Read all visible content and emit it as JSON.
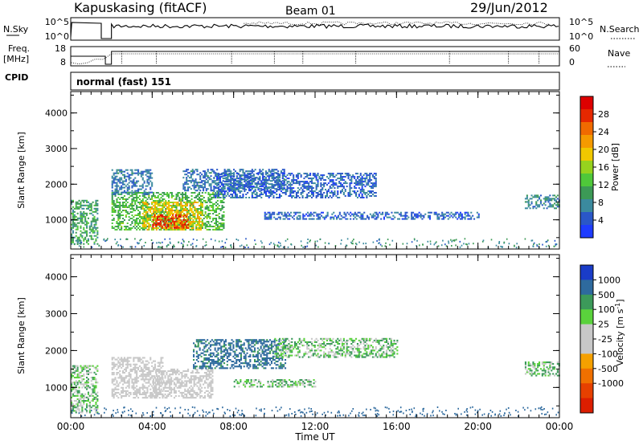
{
  "header": {
    "station": "Kapuskasing (fitACF)",
    "beam": "Beam 01",
    "date": "29/Jun/2012"
  },
  "top_panels": {
    "nsky_label": "N.Sky",
    "nsky_ticks": [
      "10^5",
      "10^0"
    ],
    "nsearch_label": "N.Search",
    "nsearch_ticks": [
      "10^5",
      "10^0"
    ],
    "freq_label_1": "Freq.",
    "freq_label_2": "[MHz]",
    "freq_ticks": [
      "18",
      "8"
    ],
    "nave_label": "Nave",
    "nave_ticks": [
      "60",
      "0"
    ],
    "cpid_label": "CPID",
    "cpid_value": "normal (fast) 151"
  },
  "colors": {
    "power_scale": [
      "#1e3cff",
      "#2a57c8",
      "#3b8a9e",
      "#3c9a56",
      "#4fc83a",
      "#96d21e",
      "#f0c800",
      "#f59a00",
      "#f06a00",
      "#e62800",
      "#dd0000"
    ],
    "velocity_scale": [
      "#1a3cc8",
      "#2e6a9e",
      "#3c9a5a",
      "#5ad23c",
      "#c8c8c8",
      "#c8c8c8",
      "#f5a000",
      "#f07000",
      "#e64000",
      "#dc1e00"
    ]
  },
  "chart_data": [
    {
      "type": "heatmap",
      "panel": "power",
      "ylabel": "Slant Range [km]",
      "ylim": [
        180,
        4600
      ],
      "yticks": [
        "4000",
        "3000",
        "2000",
        "1000"
      ],
      "xlim_hours": [
        0,
        24
      ],
      "colorbar_label": "Power [dB]",
      "colorbar_ticks": [
        "28",
        "24",
        "20",
        "16",
        "12",
        "8",
        "4"
      ],
      "colorbar_range": [
        0,
        32
      ],
      "echo_regions": [
        {
          "t": [
            0.0,
            1.3
          ],
          "r": [
            300,
            1550
          ],
          "level": 10
        },
        {
          "t": [
            2.0,
            7.5
          ],
          "r": [
            700,
            1750
          ],
          "level": 12
        },
        {
          "t": [
            3.5,
            6.5
          ],
          "r": [
            700,
            1500
          ],
          "level": 19
        },
        {
          "t": [
            4.0,
            5.8
          ],
          "r": [
            750,
            1150
          ],
          "level": 28
        },
        {
          "t": [
            2.0,
            4.0
          ],
          "r": [
            1700,
            2400
          ],
          "level": 6
        },
        {
          "t": [
            5.5,
            10.5
          ],
          "r": [
            1800,
            2400
          ],
          "level": 6
        },
        {
          "t": [
            7.0,
            15.0
          ],
          "r": [
            1600,
            2300
          ],
          "level": 5
        },
        {
          "t": [
            9.5,
            20.0
          ],
          "r": [
            1000,
            1200
          ],
          "level": 5
        },
        {
          "t": [
            22.3,
            24.0
          ],
          "r": [
            1300,
            1700
          ],
          "level": 8
        }
      ]
    },
    {
      "type": "heatmap",
      "panel": "velocity",
      "ylabel": "Slant Range [km]",
      "ylim": [
        180,
        4600
      ],
      "yticks": [
        "4000",
        "3000",
        "2000",
        "1000"
      ],
      "xlabel": "Time UT",
      "xticks": [
        "00:00",
        "04:00",
        "08:00",
        "12:00",
        "16:00",
        "20:00",
        "00:00"
      ],
      "xlim_hours": [
        0,
        24
      ],
      "colorbar_label": "Velocity [m s^-1]",
      "colorbar_ticks": [
        "1000",
        "500",
        "100",
        "25",
        "-25",
        "-100",
        "-500",
        "-1000"
      ],
      "echo_regions": [
        {
          "t": [
            0.0,
            1.3
          ],
          "r": [
            300,
            1600
          ],
          "velocity": 0
        },
        {
          "t": [
            2.0,
            4.5
          ],
          "r": [
            700,
            1800
          ],
          "velocity": -300
        },
        {
          "t": [
            4.0,
            7.0
          ],
          "r": [
            700,
            1500
          ],
          "velocity": -200
        },
        {
          "t": [
            6.0,
            10.5
          ],
          "r": [
            1500,
            2300
          ],
          "velocity": 150
        },
        {
          "t": [
            8.0,
            12.0
          ],
          "r": [
            1000,
            1200
          ],
          "velocity": 0
        },
        {
          "t": [
            10.0,
            16.0
          ],
          "r": [
            1800,
            2300
          ],
          "velocity": 0
        },
        {
          "t": [
            22.3,
            24.0
          ],
          "r": [
            1300,
            1700
          ],
          "velocity": 0
        }
      ]
    }
  ]
}
